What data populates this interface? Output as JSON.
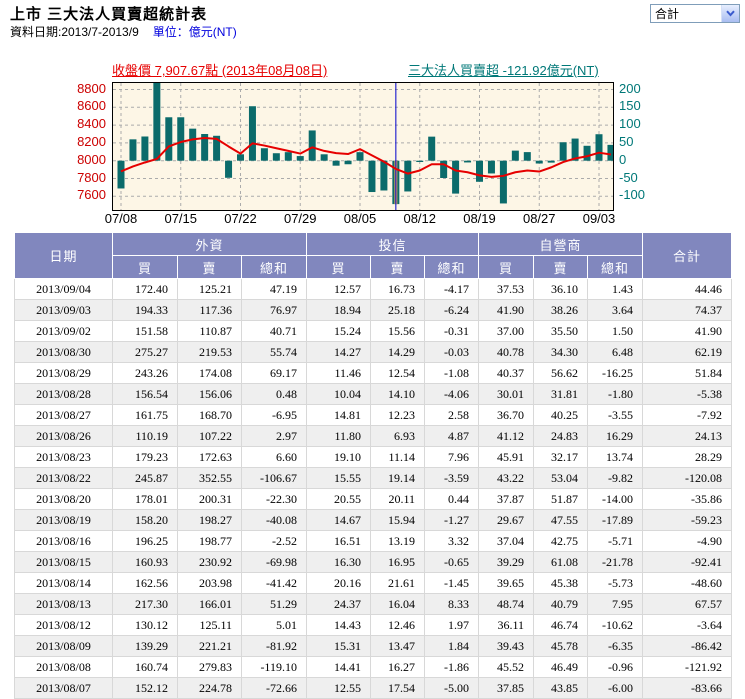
{
  "header": {
    "title": "上市 三大法人買賣超統計表",
    "date_range_label": "資料日期:2013/7-2013/9",
    "unit_label": "單位：億元(NT)",
    "category_select": {
      "value": "合計"
    }
  },
  "chart": {
    "legend_price": "收盤價 7,907.67點 (2013年08月08日)",
    "legend_net": "三大法人買賣超 -121.92億元(NT)",
    "colors": {
      "price_line": "#e60000",
      "net_bar": "#0b6b6b",
      "left_axis": "#cc0000",
      "right_axis": "#007878",
      "plot_bg": "#fdf6e6",
      "grid": "#ababab",
      "crosshair": "#0000cc",
      "highlight_stripe": "#d8a15f"
    }
  },
  "chart_data": {
    "type": "bar+line",
    "title": "上市 三大法人買賣超統計表 2013/7-2013/9",
    "x": [
      "07/08",
      "07/09",
      "07/10",
      "07/11",
      "07/12",
      "07/15",
      "07/16",
      "07/17",
      "07/18",
      "07/19",
      "07/22",
      "07/23",
      "07/24",
      "07/25",
      "07/26",
      "07/29",
      "07/30",
      "07/31",
      "08/01",
      "08/02",
      "08/05",
      "08/06",
      "08/07",
      "08/08",
      "08/09",
      "08/12",
      "08/13",
      "08/14",
      "08/15",
      "08/16",
      "08/19",
      "08/20",
      "08/22",
      "08/23",
      "08/26",
      "08/27",
      "08/28",
      "08/29",
      "08/30",
      "09/02",
      "09/03",
      "09/04"
    ],
    "series": [
      {
        "name": "收盤價",
        "type": "line",
        "axis": "left",
        "unit": "點",
        "values": [
          7880,
          7935,
          7980,
          8020,
          8160,
          8210,
          8240,
          8255,
          8245,
          8160,
          8080,
          8195,
          8170,
          8140,
          8110,
          8080,
          8150,
          8110,
          8085,
          8075,
          8130,
          8060,
          7990,
          7907.67,
          7855,
          7890,
          7960,
          7960,
          7890,
          7870,
          7835,
          7818,
          7830,
          7870,
          7890,
          7878,
          7925,
          7985,
          8025,
          8050,
          8090,
          8070
        ]
      },
      {
        "name": "三大法人買賣超",
        "type": "bar",
        "axis": "right",
        "unit": "億元(NT)",
        "values": [
          -78,
          60,
          68,
          225,
          122,
          122,
          90,
          75,
          70,
          -48,
          18,
          153,
          35,
          21,
          24,
          13,
          85,
          18,
          -14,
          -10,
          24,
          -88,
          -83.66,
          -121.92,
          -86.42,
          -3.64,
          67.57,
          -48.6,
          -92.41,
          -4.9,
          -59.23,
          -35.86,
          -120.08,
          28.29,
          24.13,
          -7.92,
          -5.38,
          51.84,
          62.19,
          41.9,
          74.37,
          44.46
        ]
      }
    ],
    "x_tick_labels": [
      "07/08",
      "07/15",
      "07/22",
      "07/29",
      "08/05",
      "08/12",
      "08/19",
      "08/27",
      "09/03"
    ],
    "left_axis_ticks": [
      8800,
      8600,
      8400,
      8200,
      8000,
      7800,
      7600
    ],
    "right_axis_ticks": [
      200,
      150,
      100,
      50,
      0,
      -50,
      -100
    ],
    "left_axis_range": [
      7550,
      8880
    ],
    "right_axis_range": [
      -137.5,
      220
    ],
    "grid": "dashed",
    "highlight_index": 23,
    "highlight_date": "08/08"
  },
  "table": {
    "groups": [
      "外資",
      "投信",
      "自營商"
    ],
    "headers": {
      "date": "日期",
      "buy": "買",
      "sell": "賣",
      "subtotal": "總和",
      "total": "合計"
    },
    "rows": [
      {
        "date": "2013/09/04",
        "cells": [
          "172.40",
          "125.21",
          "47.19",
          "12.57",
          "16.73",
          "-4.17",
          "37.53",
          "36.10",
          "1.43",
          "44.46"
        ]
      },
      {
        "date": "2013/09/03",
        "cells": [
          "194.33",
          "117.36",
          "76.97",
          "18.94",
          "25.18",
          "-6.24",
          "41.90",
          "38.26",
          "3.64",
          "74.37"
        ]
      },
      {
        "date": "2013/09/02",
        "cells": [
          "151.58",
          "110.87",
          "40.71",
          "15.24",
          "15.56",
          "-0.31",
          "37.00",
          "35.50",
          "1.50",
          "41.90"
        ]
      },
      {
        "date": "2013/08/30",
        "cells": [
          "275.27",
          "219.53",
          "55.74",
          "14.27",
          "14.29",
          "-0.03",
          "40.78",
          "34.30",
          "6.48",
          "62.19"
        ]
      },
      {
        "date": "2013/08/29",
        "cells": [
          "243.26",
          "174.08",
          "69.17",
          "11.46",
          "12.54",
          "-1.08",
          "40.37",
          "56.62",
          "-16.25",
          "51.84"
        ]
      },
      {
        "date": "2013/08/28",
        "cells": [
          "156.54",
          "156.06",
          "0.48",
          "10.04",
          "14.10",
          "-4.06",
          "30.01",
          "31.81",
          "-1.80",
          "-5.38"
        ]
      },
      {
        "date": "2013/08/27",
        "cells": [
          "161.75",
          "168.70",
          "-6.95",
          "14.81",
          "12.23",
          "2.58",
          "36.70",
          "40.25",
          "-3.55",
          "-7.92"
        ]
      },
      {
        "date": "2013/08/26",
        "cells": [
          "110.19",
          "107.22",
          "2.97",
          "11.80",
          "6.93",
          "4.87",
          "41.12",
          "24.83",
          "16.29",
          "24.13"
        ]
      },
      {
        "date": "2013/08/23",
        "cells": [
          "179.23",
          "172.63",
          "6.60",
          "19.10",
          "11.14",
          "7.96",
          "45.91",
          "32.17",
          "13.74",
          "28.29"
        ]
      },
      {
        "date": "2013/08/22",
        "cells": [
          "245.87",
          "352.55",
          "-106.67",
          "15.55",
          "19.14",
          "-3.59",
          "43.22",
          "53.04",
          "-9.82",
          "-120.08"
        ]
      },
      {
        "date": "2013/08/20",
        "cells": [
          "178.01",
          "200.31",
          "-22.30",
          "20.55",
          "20.11",
          "0.44",
          "37.87",
          "51.87",
          "-14.00",
          "-35.86"
        ]
      },
      {
        "date": "2013/08/19",
        "cells": [
          "158.20",
          "198.27",
          "-40.08",
          "14.67",
          "15.94",
          "-1.27",
          "29.67",
          "47.55",
          "-17.89",
          "-59.23"
        ]
      },
      {
        "date": "2013/08/16",
        "cells": [
          "196.25",
          "198.77",
          "-2.52",
          "16.51",
          "13.19",
          "3.32",
          "37.04",
          "42.75",
          "-5.71",
          "-4.90"
        ]
      },
      {
        "date": "2013/08/15",
        "cells": [
          "160.93",
          "230.92",
          "-69.98",
          "16.30",
          "16.95",
          "-0.65",
          "39.29",
          "61.08",
          "-21.78",
          "-92.41"
        ]
      },
      {
        "date": "2013/08/14",
        "cells": [
          "162.56",
          "203.98",
          "-41.42",
          "20.16",
          "21.61",
          "-1.45",
          "39.65",
          "45.38",
          "-5.73",
          "-48.60"
        ]
      },
      {
        "date": "2013/08/13",
        "cells": [
          "217.30",
          "166.01",
          "51.29",
          "24.37",
          "16.04",
          "8.33",
          "48.74",
          "40.79",
          "7.95",
          "67.57"
        ]
      },
      {
        "date": "2013/08/12",
        "cells": [
          "130.12",
          "125.11",
          "5.01",
          "14.43",
          "12.46",
          "1.97",
          "36.11",
          "46.74",
          "-10.62",
          "-3.64"
        ]
      },
      {
        "date": "2013/08/09",
        "cells": [
          "139.29",
          "221.21",
          "-81.92",
          "15.31",
          "13.47",
          "1.84",
          "39.43",
          "45.78",
          "-6.35",
          "-86.42"
        ]
      },
      {
        "date": "2013/08/08",
        "cells": [
          "160.74",
          "279.83",
          "-119.10",
          "14.41",
          "16.27",
          "-1.86",
          "45.52",
          "46.49",
          "-0.96",
          "-121.92"
        ]
      },
      {
        "date": "2013/08/07",
        "cells": [
          "152.12",
          "224.78",
          "-72.66",
          "12.55",
          "17.54",
          "-5.00",
          "37.85",
          "43.85",
          "-6.00",
          "-83.66"
        ]
      }
    ]
  }
}
